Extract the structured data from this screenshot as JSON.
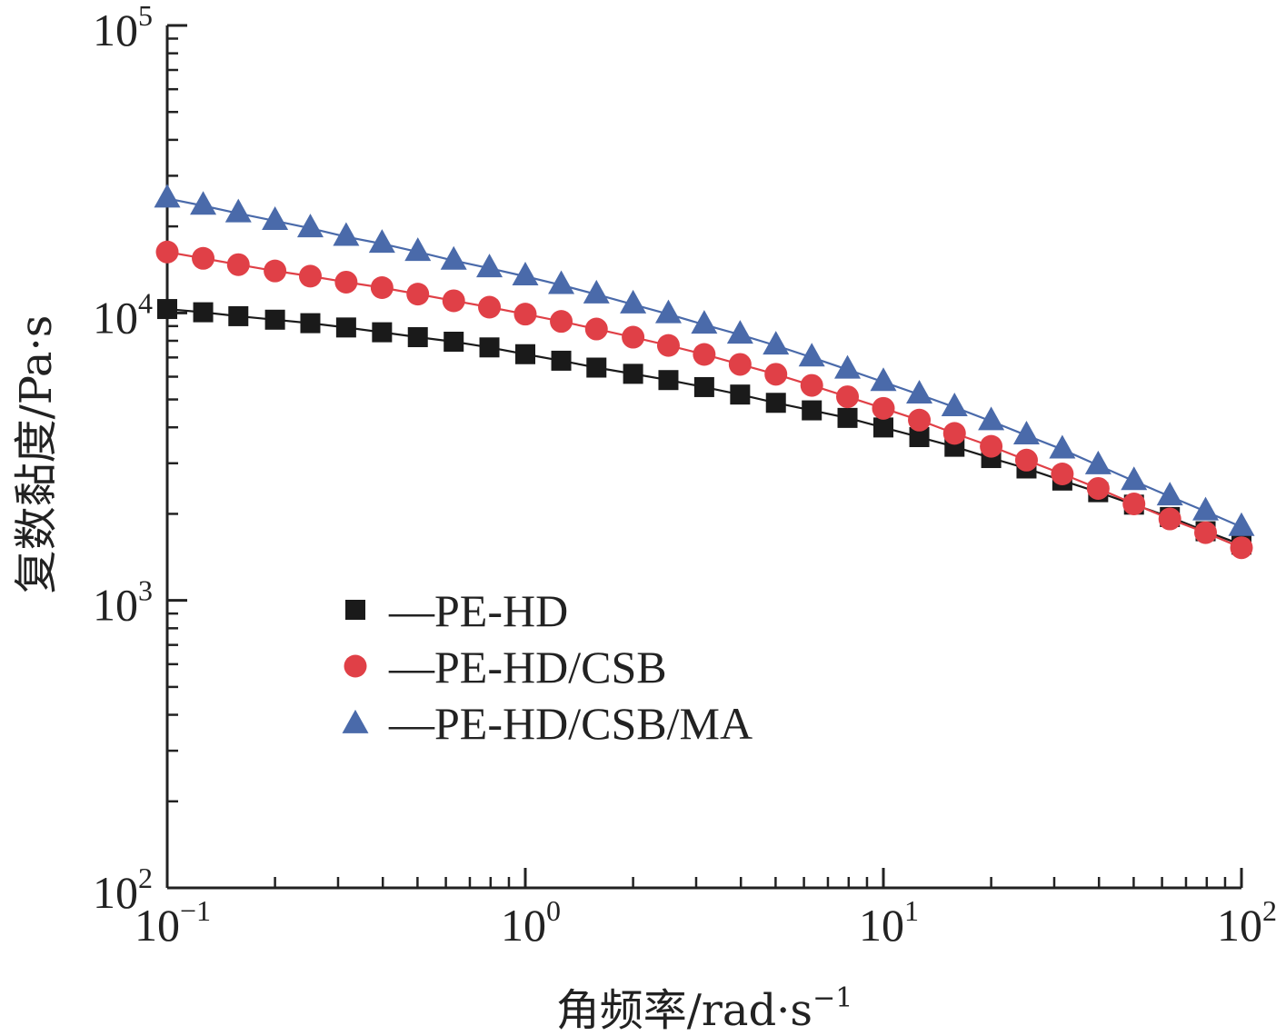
{
  "chart_data": {
    "type": "line",
    "xlabel": "角频率/rad·s",
    "xlabel_sup": "−1",
    "ylabel": "复数黏度/Pa·s",
    "x_scale": "log",
    "y_scale": "log",
    "xlim": [
      0.1,
      100
    ],
    "ylim": [
      100,
      100000
    ],
    "grid": false,
    "legend_placement": "center-left",
    "x_ticks": [
      {
        "base": "10",
        "exp": "−1",
        "value": 0.1
      },
      {
        "base": "10",
        "exp": "0",
        "value": 1
      },
      {
        "base": "10",
        "exp": "1",
        "value": 10
      },
      {
        "base": "10",
        "exp": "2",
        "value": 100
      }
    ],
    "y_ticks": [
      {
        "base": "10",
        "exp": "2",
        "value": 100
      },
      {
        "base": "10",
        "exp": "3",
        "value": 1000
      },
      {
        "base": "10",
        "exp": "4",
        "value": 10000
      },
      {
        "base": "10",
        "exp": "5",
        "value": 100000
      }
    ],
    "x": [
      0.1,
      0.126,
      0.158,
      0.2,
      0.251,
      0.316,
      0.398,
      0.501,
      0.631,
      0.794,
      1.0,
      1.26,
      1.58,
      2.0,
      2.51,
      3.16,
      3.98,
      5.01,
      6.31,
      7.94,
      10.0,
      12.6,
      15.8,
      20.0,
      25.1,
      31.6,
      39.8,
      50.1,
      63.1,
      79.4,
      100
    ],
    "series": [
      {
        "name": "—PE-HD",
        "color": "#1a1a1a",
        "marker": "square",
        "values": [
          10316,
          10053,
          9742,
          9472,
          9212,
          8899,
          8565,
          8235,
          7941,
          7586,
          7185,
          6820,
          6453,
          6139,
          5840,
          5521,
          5200,
          4867,
          4582,
          4313,
          3995,
          3698,
          3423,
          3127,
          2877,
          2611,
          2379,
          2153,
          1950,
          1740,
          1563
        ]
      },
      {
        "name": "—PE-HD/CSB",
        "color": "#e04047",
        "marker": "circle",
        "values": [
          16290,
          15484,
          14723,
          13996,
          13425,
          12798,
          12246,
          11626,
          11021,
          10471,
          9902,
          9342,
          8790,
          8232,
          7707,
          7172,
          6622,
          6119,
          5597,
          5110,
          4657,
          4238,
          3811,
          3435,
          3076,
          2754,
          2452,
          2166,
          1920,
          1721,
          1525
        ]
      },
      {
        "name": "—PE-HD/CSB/MA",
        "color": "#4a6aaa",
        "marker": "triangle",
        "values": [
          25000,
          23600,
          22200,
          20900,
          19700,
          18400,
          17400,
          16300,
          15200,
          14300,
          13400,
          12500,
          11600,
          10700,
          9900,
          9100,
          8400,
          7700,
          7000,
          6350,
          5750,
          5200,
          4700,
          4200,
          3750,
          3350,
          2950,
          2600,
          2300,
          2040,
          1800
        ]
      }
    ]
  }
}
